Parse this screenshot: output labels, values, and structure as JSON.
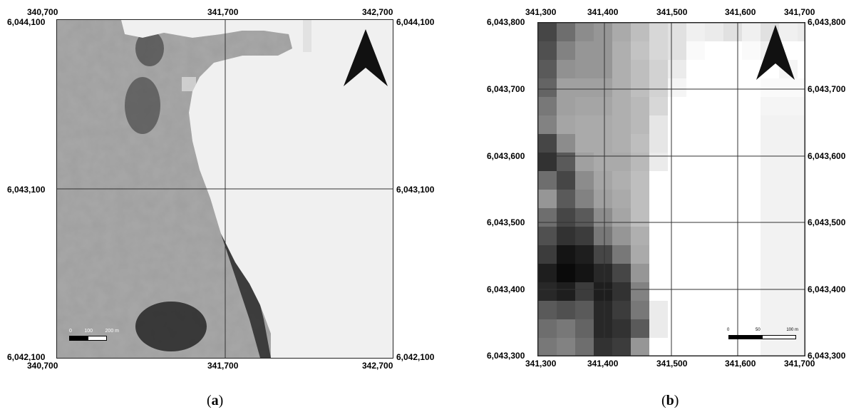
{
  "panel_a": {
    "caption_open": "(",
    "caption_letter": "a",
    "caption_close": ")",
    "top_labels": [
      "340,700",
      "341,700",
      "342,700"
    ],
    "bottom_labels": [
      "340,700",
      "341,700",
      "342,700"
    ],
    "left_labels": [
      "6,044,100",
      "6,043,100",
      "6,042,100"
    ],
    "right_labels": [
      "6,044,100",
      "6,043,100",
      "6,042,100"
    ],
    "scale_bar": {
      "ticks": [
        "0",
        "100",
        "200 m"
      ]
    },
    "north_arrow_icon": "north-arrow-icon"
  },
  "panel_b": {
    "caption_open": "(",
    "caption_letter": "b",
    "caption_close": ")",
    "top_labels": [
      "341,300",
      "341,400",
      "341,500",
      "341,600",
      "341,700"
    ],
    "bottom_labels": [
      "341,300",
      "341,400",
      "341,500",
      "341,600",
      "341,700"
    ],
    "left_labels": [
      "6,043,800",
      "6,043,700",
      "6,043,600",
      "6,043,500",
      "6,043,400",
      "6,043,300"
    ],
    "right_labels": [
      "6,043,800",
      "6,043,700",
      "6,043,600",
      "6,043,500",
      "6,043,400",
      "6,043,300"
    ],
    "scale_bar": {
      "ticks": [
        "0",
        "50",
        "100 m"
      ]
    },
    "north_arrow_icon": "north-arrow-icon"
  },
  "colors": {
    "water": "#f0f0f0",
    "grid_line": "#333333",
    "arrow": "#111111"
  }
}
